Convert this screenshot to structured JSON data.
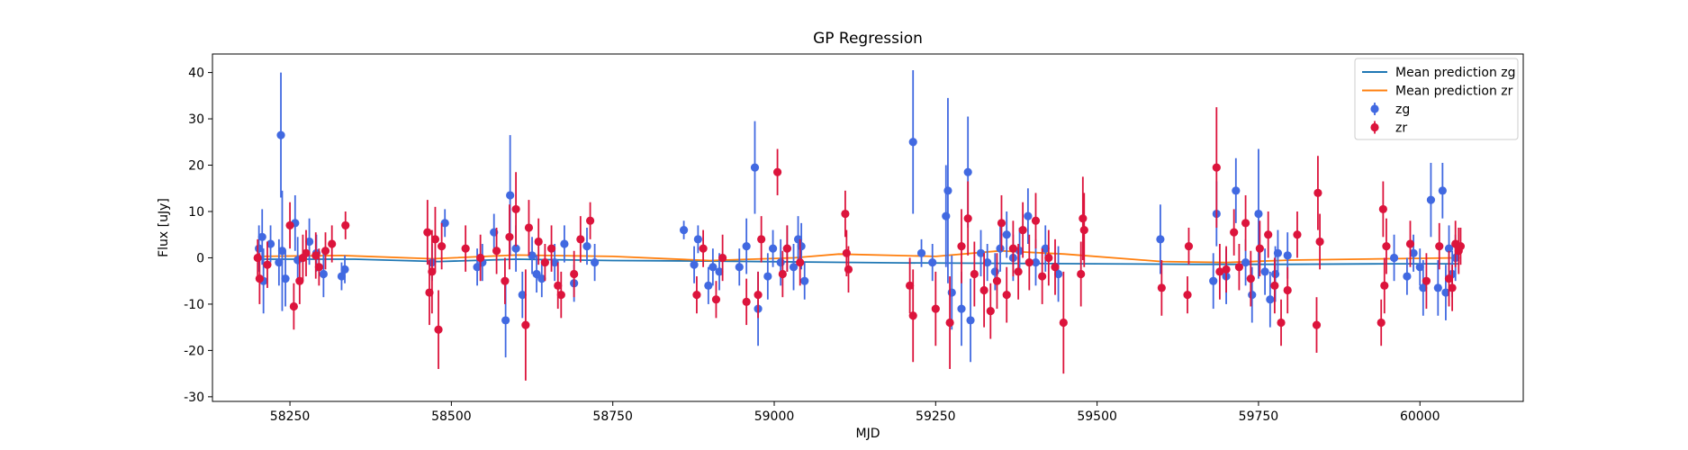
{
  "chart_data": {
    "type": "scatter",
    "title": "GP Regression",
    "xlabel": "MJD",
    "ylabel": "Flux [uJy]",
    "xlim": [
      58130,
      60160
    ],
    "ylim": [
      -31,
      44
    ],
    "xticks": [
      58250,
      58500,
      58750,
      59000,
      59250,
      59500,
      59750,
      60000
    ],
    "yticks": [
      -30,
      -20,
      -10,
      0,
      10,
      20,
      30,
      40
    ],
    "grid": false,
    "legend_position": "top-right",
    "legend": [
      {
        "label": "Mean prediction zg",
        "kind": "line",
        "color": "#1f77b4"
      },
      {
        "label": "Mean prediction zr",
        "kind": "line",
        "color": "#ff7f0e"
      },
      {
        "label": "zg",
        "kind": "errorbar",
        "color": "#4169e1"
      },
      {
        "label": "zr",
        "kind": "errorbar",
        "color": "#dc143c"
      }
    ],
    "lines": [
      {
        "name": "Mean prediction zg",
        "color": "#1f77b4",
        "x": [
          58200,
          58350,
          58480,
          58600,
          58750,
          58900,
          59050,
          59200,
          59350,
          59500,
          59650,
          59800,
          59950,
          60060
        ],
        "y": [
          -0.3,
          -0.3,
          -0.8,
          -0.3,
          -0.6,
          -0.7,
          -0.9,
          -1.1,
          -1.2,
          -1.3,
          -1.4,
          -1.4,
          -1.3,
          -1.3
        ]
      },
      {
        "name": "Mean prediction zr",
        "color": "#ff7f0e",
        "x": [
          58200,
          58330,
          58470,
          58600,
          58750,
          58900,
          59030,
          59100,
          59250,
          59350,
          59450,
          59600,
          59700,
          59800,
          59950,
          60060
        ],
        "y": [
          0.3,
          0.5,
          -0.2,
          0.6,
          0.3,
          -0.6,
          0.0,
          0.8,
          0.3,
          1.5,
          0.8,
          -0.8,
          -1.0,
          -0.5,
          -0.2,
          0.0
        ]
      }
    ],
    "series": [
      {
        "name": "zg",
        "color": "#4169e1",
        "points": [
          [
            58202,
            2,
            5
          ],
          [
            58207,
            4.5,
            6
          ],
          [
            58209,
            -5,
            7
          ],
          [
            58220,
            3,
            4
          ],
          [
            58233,
            -1,
            5
          ],
          [
            58236,
            26.5,
            13.5
          ],
          [
            58238,
            1.5,
            13
          ],
          [
            58243,
            -4.5,
            6
          ],
          [
            58258,
            7.5,
            6
          ],
          [
            58262,
            -0.5,
            5
          ],
          [
            58280,
            3.5,
            5
          ],
          [
            58291,
            1,
            4
          ],
          [
            58302,
            -3.5,
            5
          ],
          [
            58330,
            -4,
            3
          ],
          [
            58335,
            -2.5,
            3
          ],
          [
            58470,
            -1,
            4
          ],
          [
            58490,
            7.5,
            3
          ],
          [
            58540,
            -2,
            4
          ],
          [
            58548,
            -1,
            4
          ],
          [
            58566,
            5.5,
            4
          ],
          [
            58584,
            -13.5,
            8
          ],
          [
            58591,
            13.5,
            13
          ],
          [
            58600,
            2,
            5
          ],
          [
            58610,
            -8,
            5
          ],
          [
            58625,
            0.5,
            4
          ],
          [
            58632,
            -3.5,
            4
          ],
          [
            58640,
            -4.5,
            4
          ],
          [
            58660,
            -1,
            4
          ],
          [
            58675,
            3,
            4
          ],
          [
            58690,
            -5.5,
            4
          ],
          [
            58710,
            2.5,
            4
          ],
          [
            58722,
            -1,
            4
          ],
          [
            58860,
            6,
            2
          ],
          [
            58876,
            -1.5,
            4
          ],
          [
            58882,
            4,
            3
          ],
          [
            58898,
            -6,
            4
          ],
          [
            58905,
            -2,
            4
          ],
          [
            58915,
            -3,
            4
          ],
          [
            58946,
            -2,
            4
          ],
          [
            58957,
            2.5,
            6
          ],
          [
            58970,
            19.5,
            10
          ],
          [
            58975,
            -11,
            8
          ],
          [
            58990,
            -4,
            5
          ],
          [
            58998,
            2,
            4
          ],
          [
            59010,
            -1,
            5
          ],
          [
            59020,
            2,
            5
          ],
          [
            59030,
            -2,
            5
          ],
          [
            59037,
            4,
            5
          ],
          [
            59042,
            2.5,
            5
          ],
          [
            59047,
            -5,
            4
          ],
          [
            59215,
            25,
            15.5
          ],
          [
            59228,
            1,
            3
          ],
          [
            59245,
            -1,
            4
          ],
          [
            59266,
            9,
            11
          ],
          [
            59269,
            14.5,
            20
          ],
          [
            59275,
            -7.5,
            8
          ],
          [
            59290,
            -11,
            8
          ],
          [
            59300,
            18.5,
            12
          ],
          [
            59304,
            -13.5,
            9
          ],
          [
            59320,
            1,
            5
          ],
          [
            59330,
            -1,
            4
          ],
          [
            59342,
            -3,
            4
          ],
          [
            59350,
            2,
            5
          ],
          [
            59360,
            5,
            5
          ],
          [
            59370,
            0,
            5
          ],
          [
            59380,
            1.5,
            5
          ],
          [
            59393,
            9,
            6
          ],
          [
            59405,
            -1,
            5
          ],
          [
            59420,
            2,
            5
          ],
          [
            59440,
            -3.5,
            6
          ],
          [
            59598,
            4,
            7.5
          ],
          [
            59680,
            -5,
            6
          ],
          [
            59685,
            9.5,
            7
          ],
          [
            59700,
            -4,
            6
          ],
          [
            59715,
            14.5,
            7
          ],
          [
            59730,
            -1,
            5
          ],
          [
            59740,
            -8,
            6
          ],
          [
            59750,
            9.5,
            14
          ],
          [
            59760,
            -3,
            5
          ],
          [
            59768,
            -9,
            6
          ],
          [
            59776,
            -3.5,
            6
          ],
          [
            59780,
            1,
            5
          ],
          [
            59795,
            0.5,
            5
          ],
          [
            59960,
            0,
            5
          ],
          [
            59980,
            -4,
            4
          ],
          [
            59990,
            1,
            4
          ],
          [
            60000,
            -2,
            4
          ],
          [
            60005,
            -6.5,
            6
          ],
          [
            60017,
            12.5,
            8
          ],
          [
            60028,
            -6.5,
            6
          ],
          [
            60035,
            14.5,
            6
          ],
          [
            60040,
            -7.5,
            6
          ],
          [
            60045,
            2,
            5
          ],
          [
            60050,
            -3.5,
            5
          ],
          [
            60055,
            0,
            5
          ]
        ]
      },
      {
        "name": "zr",
        "color": "#dc143c",
        "points": [
          [
            58200,
            0,
            4
          ],
          [
            58203,
            -4.5,
            5.5
          ],
          [
            58215,
            -1.5,
            5
          ],
          [
            58250,
            7,
            5
          ],
          [
            58256,
            -10.5,
            5
          ],
          [
            58265,
            -5,
            5
          ],
          [
            58270,
            0,
            5
          ],
          [
            58275,
            1,
            5
          ],
          [
            58290,
            0.5,
            5
          ],
          [
            58295,
            -2,
            4
          ],
          [
            58305,
            1.5,
            4
          ],
          [
            58315,
            3,
            4
          ],
          [
            58336,
            7,
            3
          ],
          [
            58463,
            5.5,
            7
          ],
          [
            58466,
            -7.5,
            7
          ],
          [
            58470,
            -3,
            9
          ],
          [
            58475,
            4,
            7
          ],
          [
            58480,
            -15.5,
            8.5
          ],
          [
            58485,
            2.5,
            5
          ],
          [
            58522,
            2,
            5
          ],
          [
            58545,
            0,
            5
          ],
          [
            58570,
            1.5,
            5
          ],
          [
            58583,
            -5,
            5
          ],
          [
            58590,
            4.5,
            7
          ],
          [
            58600,
            10.5,
            8
          ],
          [
            58615,
            -14.5,
            12
          ],
          [
            58620,
            6.5,
            6
          ],
          [
            58635,
            3.5,
            5
          ],
          [
            58645,
            -1,
            4
          ],
          [
            58655,
            2,
            5
          ],
          [
            58665,
            -6,
            5
          ],
          [
            58670,
            -8,
            5
          ],
          [
            58690,
            -3.5,
            5
          ],
          [
            58700,
            4,
            5
          ],
          [
            58715,
            8,
            4
          ],
          [
            58880,
            -8,
            4
          ],
          [
            58890,
            2,
            4
          ],
          [
            58910,
            -9,
            4
          ],
          [
            58920,
            0,
            5
          ],
          [
            58957,
            -9.5,
            5
          ],
          [
            58975,
            -8,
            5
          ],
          [
            58980,
            4,
            5
          ],
          [
            59005,
            18.5,
            5
          ],
          [
            59013,
            -3.5,
            5
          ],
          [
            59020,
            2,
            5
          ],
          [
            59040,
            -1,
            5
          ],
          [
            59110,
            9.5,
            5
          ],
          [
            59115,
            -2.5,
            5
          ],
          [
            59112,
            1,
            5
          ],
          [
            59210,
            -6,
            6
          ],
          [
            59215,
            -12.5,
            10
          ],
          [
            59250,
            -11,
            8
          ],
          [
            59272,
            -14,
            10
          ],
          [
            59290,
            2.5,
            8
          ],
          [
            59300,
            8.5,
            8
          ],
          [
            59310,
            -3.5,
            7
          ],
          [
            59325,
            -7,
            8
          ],
          [
            59335,
            -11.5,
            6
          ],
          [
            59345,
            -5,
            6
          ],
          [
            59352,
            7.5,
            6
          ],
          [
            59360,
            -8,
            6
          ],
          [
            59370,
            2,
            6
          ],
          [
            59378,
            -3,
            6
          ],
          [
            59385,
            6,
            6
          ],
          [
            59395,
            -1,
            6
          ],
          [
            59405,
            8,
            6
          ],
          [
            59415,
            -4,
            6
          ],
          [
            59425,
            0,
            6
          ],
          [
            59435,
            -2,
            6
          ],
          [
            59448,
            -14,
            11
          ],
          [
            59475,
            -3.5,
            7
          ],
          [
            59478,
            8.5,
            9
          ],
          [
            59480,
            6,
            8
          ],
          [
            59600,
            -6.5,
            6
          ],
          [
            59640,
            -8,
            4
          ],
          [
            59642,
            2.5,
            4
          ],
          [
            59685,
            19.5,
            13
          ],
          [
            59690,
            -3,
            6
          ],
          [
            59700,
            -2.5,
            5
          ],
          [
            59712,
            5.5,
            5
          ],
          [
            59720,
            -2,
            5
          ],
          [
            59730,
            7.5,
            6
          ],
          [
            59738,
            -4.5,
            6
          ],
          [
            59752,
            2,
            6
          ],
          [
            59765,
            5,
            5
          ],
          [
            59775,
            -6,
            6
          ],
          [
            59785,
            -14,
            5
          ],
          [
            59795,
            -7,
            5
          ],
          [
            59810,
            5,
            5
          ],
          [
            59840,
            -14.5,
            6
          ],
          [
            59842,
            14,
            8
          ],
          [
            59845,
            3.5,
            6
          ],
          [
            59940,
            -14,
            5
          ],
          [
            59943,
            10.5,
            6
          ],
          [
            59945,
            -6,
            6
          ],
          [
            59948,
            2.5,
            6
          ],
          [
            59985,
            3,
            5
          ],
          [
            60010,
            -5,
            6
          ],
          [
            60030,
            2.5,
            5
          ],
          [
            60045,
            -4.5,
            6
          ],
          [
            60050,
            -6.5,
            5
          ],
          [
            60055,
            3,
            5
          ],
          [
            60060,
            1.5,
            5
          ],
          [
            60063,
            2.5,
            4
          ]
        ]
      }
    ]
  }
}
